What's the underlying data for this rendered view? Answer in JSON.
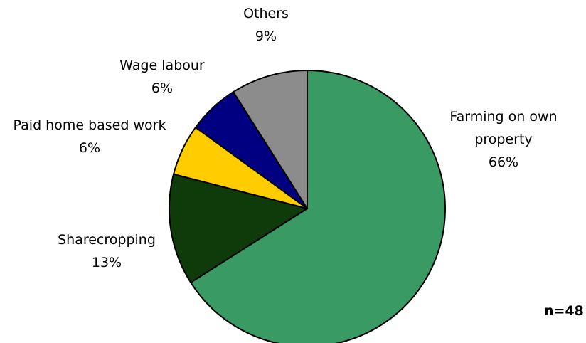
{
  "chart_data": {
    "type": "pie",
    "title": "",
    "slices": [
      {
        "name": "Farming on own property",
        "label_lines": [
          "Farming on own",
          "property"
        ],
        "percent_label": "66%",
        "value": 66,
        "color": "#3a9a63"
      },
      {
        "name": "Sharecropping",
        "label_lines": [
          "Sharecropping"
        ],
        "percent_label": "13%",
        "value": 13,
        "color": "#0f3a0a"
      },
      {
        "name": "Paid home based work",
        "label_lines": [
          "Paid home based work"
        ],
        "percent_label": "6%",
        "value": 6,
        "color": "#ffcc00"
      },
      {
        "name": "Wage labour",
        "label_lines": [
          "Wage labour"
        ],
        "percent_label": "6%",
        "value": 6,
        "color": "#000080"
      },
      {
        "name": "Others",
        "label_lines": [
          "Others"
        ],
        "percent_label": "9%",
        "value": 9,
        "color": "#8c8c8c"
      }
    ],
    "start_angle": "12 o'clock",
    "direction": "clockwise",
    "outline_color": "#000000",
    "sample_note": "n=48"
  }
}
